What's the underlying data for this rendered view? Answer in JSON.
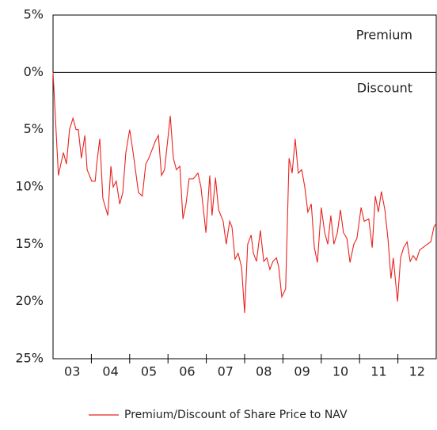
{
  "chart_data": {
    "type": "line",
    "annotations": [
      "Premium",
      "Discount"
    ],
    "x": [
      2003.0,
      2003.14,
      2003.27,
      2003.35,
      2003.43,
      2003.52,
      2003.6,
      2003.66,
      2003.74,
      2003.83,
      2003.89,
      2004.01,
      2004.1,
      2004.14,
      2004.22,
      2004.3,
      2004.43,
      2004.51,
      2004.57,
      2004.65,
      2004.74,
      2004.82,
      2004.9,
      2005.0,
      2005.09,
      2005.23,
      2005.33,
      2005.42,
      2005.5,
      2005.67,
      2005.75,
      2005.83,
      2005.91,
      2006.06,
      2006.14,
      2006.22,
      2006.31,
      2006.39,
      2006.47,
      2006.55,
      2006.66,
      2006.78,
      2006.86,
      2006.99,
      2007.09,
      2007.15,
      2007.24,
      2007.32,
      2007.44,
      2007.52,
      2007.61,
      2007.67,
      2007.75,
      2007.83,
      2007.92,
      2008.0,
      2008.08,
      2008.17,
      2008.23,
      2008.31,
      2008.41,
      2008.5,
      2008.58,
      2008.66,
      2008.74,
      2008.83,
      2008.89,
      2008.97,
      2009.07,
      2009.16,
      2009.24,
      2009.32,
      2009.4,
      2009.49,
      2009.57,
      2009.65,
      2009.74,
      2009.82,
      2009.9,
      2010.0,
      2010.09,
      2010.17,
      2010.25,
      2010.33,
      2010.42,
      2010.5,
      2010.58,
      2010.67,
      2010.75,
      2010.85,
      2010.93,
      2011.04,
      2011.12,
      2011.24,
      2011.33,
      2011.41,
      2011.49,
      2011.57,
      2011.66,
      2011.74,
      2011.82,
      2011.88,
      2011.99,
      2012.07,
      2012.15,
      2012.24,
      2012.32,
      2012.4,
      2012.48,
      2012.57,
      2012.65,
      2012.77,
      2012.86,
      2012.94,
      2013.0
    ],
    "series": [
      {
        "name": "Premium/Discount of Share Price to NAV",
        "color": "#e8231f",
        "values": [
          0,
          -9,
          -7,
          -8,
          -5,
          -4,
          -5,
          -5,
          -7.5,
          -5.5,
          -8.5,
          -9.5,
          -9.5,
          -8,
          -5.8,
          -11,
          -12.5,
          -8.2,
          -10,
          -9.5,
          -11.5,
          -10.5,
          -7,
          -5,
          -7,
          -10.5,
          -10.8,
          -8,
          -7.5,
          -6,
          -5.5,
          -9,
          -8.5,
          -3.8,
          -7.5,
          -8.5,
          -8.2,
          -12.8,
          -11.5,
          -9.3,
          -9.3,
          -8.8,
          -10,
          -14,
          -9,
          -12.5,
          -9.2,
          -12,
          -13,
          -15,
          -13,
          -13.5,
          -16.3,
          -15.8,
          -17,
          -21,
          -15,
          -14.2,
          -15.8,
          -16.5,
          -13.8,
          -16.5,
          -16.2,
          -17.2,
          -16.5,
          -16.2,
          -17,
          -19.6,
          -18.9,
          -7.5,
          -8.8,
          -5.8,
          -8.8,
          -8.5,
          -10,
          -12.2,
          -11.5,
          -15.3,
          -16.6,
          -11.8,
          -14,
          -15,
          -12.5,
          -15,
          -14,
          -12,
          -14,
          -14.5,
          -16.6,
          -15,
          -14.5,
          -11.8,
          -13,
          -12.8,
          -15.3,
          -10.8,
          -12.2,
          -10.4,
          -12,
          -14.5,
          -18,
          -16.2,
          -20,
          -16.2,
          -15.3,
          -14.8,
          -16.5,
          -16,
          -16.4,
          -15.5,
          -15.3,
          -15,
          -14.8,
          -13.5,
          -13.2
        ]
      }
    ],
    "xlim": [
      2003,
      2013
    ],
    "xticks": [
      {
        "value": 2003,
        "label": "03"
      },
      {
        "value": 2004,
        "label": "04"
      },
      {
        "value": 2005,
        "label": "05"
      },
      {
        "value": 2006,
        "label": "06"
      },
      {
        "value": 2007,
        "label": "07"
      },
      {
        "value": 2008,
        "label": "08"
      },
      {
        "value": 2009,
        "label": "09"
      },
      {
        "value": 2010,
        "label": "10"
      },
      {
        "value": 2011,
        "label": "11"
      },
      {
        "value": 2012,
        "label": "12"
      }
    ],
    "ylim": [
      -25,
      5
    ],
    "yticks": [
      {
        "value": 5,
        "label": "5%"
      },
      {
        "value": 0,
        "label": "0%"
      },
      {
        "value": -5,
        "label": "5%"
      },
      {
        "value": -10,
        "label": "10%"
      },
      {
        "value": -15,
        "label": "15%"
      },
      {
        "value": -20,
        "label": "20%"
      },
      {
        "value": -25,
        "label": "25%"
      }
    ],
    "grid": false,
    "zero_line": true,
    "legend": "bottom"
  }
}
